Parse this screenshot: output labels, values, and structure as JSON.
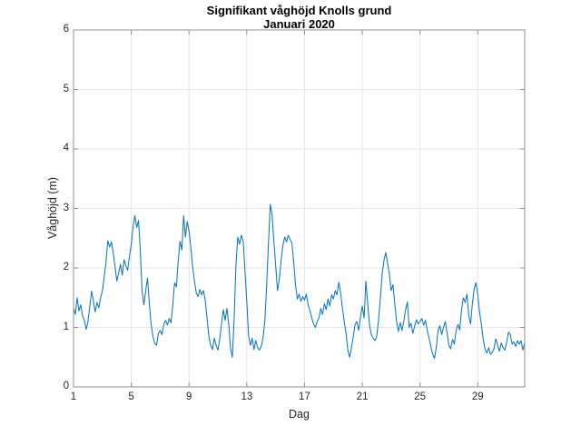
{
  "figure": {
    "background": "#ffffff"
  },
  "chart_data": {
    "type": "line",
    "title": "Signifikant våghöjd Knolls grund",
    "subtitle": "Januari 2020",
    "xlabel": "Dag",
    "ylabel": "Våghöjd (m)",
    "xlim": [
      1,
      32.25
    ],
    "ylim": [
      0,
      6
    ],
    "xticks": [
      1,
      5,
      9,
      13,
      17,
      21,
      25,
      29
    ],
    "yticks": [
      0,
      1,
      2,
      3,
      4,
      5,
      6
    ],
    "grid": true,
    "legend": "none",
    "line_color": "#0072BD",
    "axis_color": "#909090",
    "grid_color": "#e6e6e6",
    "text_color": "#262626",
    "series": [
      {
        "name": "Signifikant våghöjd (m)",
        "x_start": 1,
        "x_step": 0.125,
        "values": [
          1.32,
          1.22,
          1.5,
          1.28,
          1.38,
          1.2,
          1.12,
          0.97,
          1.1,
          1.35,
          1.61,
          1.45,
          1.26,
          1.42,
          1.33,
          1.5,
          1.62,
          1.85,
          2.1,
          2.46,
          2.35,
          2.44,
          2.25,
          2.02,
          1.78,
          1.92,
          2.06,
          1.88,
          2.14,
          2.04,
          1.96,
          2.2,
          2.4,
          2.7,
          2.88,
          2.68,
          2.8,
          2.3,
          1.6,
          1.38,
          1.62,
          1.83,
          1.4,
          1.05,
          0.85,
          0.73,
          0.7,
          0.9,
          0.95,
          0.88,
          1.05,
          1.12,
          1.04,
          1.15,
          1.08,
          1.38,
          1.75,
          1.68,
          2.12,
          2.45,
          2.3,
          2.88,
          2.52,
          2.78,
          2.62,
          2.35,
          2.02,
          1.78,
          1.58,
          1.52,
          1.64,
          1.55,
          1.62,
          1.45,
          1.15,
          0.85,
          0.7,
          0.63,
          0.82,
          0.7,
          0.62,
          0.8,
          1.06,
          1.3,
          1.12,
          1.32,
          1.05,
          0.65,
          0.5,
          1.15,
          2.05,
          2.52,
          2.4,
          2.55,
          2.45,
          1.95,
          1.44,
          0.86,
          0.7,
          0.82,
          0.63,
          0.78,
          0.66,
          0.62,
          0.68,
          0.82,
          1.1,
          1.7,
          2.4,
          3.07,
          2.9,
          2.45,
          2.05,
          1.62,
          1.8,
          2.12,
          2.38,
          2.52,
          2.44,
          2.55,
          2.48,
          2.42,
          2.1,
          1.72,
          1.48,
          1.56,
          1.44,
          1.52,
          1.46,
          1.56,
          1.38,
          1.28,
          1.16,
          1.06,
          1.0,
          1.1,
          1.16,
          1.32,
          1.22,
          1.4,
          1.3,
          1.48,
          1.36,
          1.55,
          1.48,
          1.62,
          1.55,
          1.76,
          1.58,
          1.32,
          1.1,
          0.9,
          0.62,
          0.5,
          0.66,
          0.85,
          1.05,
          1.1,
          0.95,
          1.18,
          1.36,
          1.16,
          1.78,
          1.4,
          1.05,
          0.88,
          0.82,
          0.78,
          0.85,
          1.12,
          1.48,
          1.9,
          2.12,
          2.26,
          2.08,
          1.9,
          1.62,
          1.72,
          1.4,
          1.1,
          0.93,
          1.08,
          0.95,
          1.1,
          1.3,
          1.43,
          1.0,
          1.07,
          0.9,
          1.02,
          1.13,
          1.06,
          1.1,
          1.15,
          1.04,
          1.12,
          0.95,
          0.82,
          0.68,
          0.55,
          0.48,
          0.66,
          0.95,
          1.03,
          0.88,
          1.0,
          1.1,
          0.9,
          0.7,
          0.64,
          0.8,
          0.72,
          0.95,
          1.05,
          0.96,
          1.3,
          1.5,
          1.42,
          1.56,
          1.2,
          1.06,
          1.4,
          1.65,
          1.75,
          1.55,
          1.25,
          1.05,
          0.8,
          0.64,
          0.57,
          0.66,
          0.55,
          0.58,
          0.65,
          0.81,
          0.7,
          0.6,
          0.74,
          0.66,
          0.62,
          0.75,
          0.92,
          0.88,
          0.72,
          0.76,
          0.68,
          0.78,
          0.72,
          0.78,
          0.62,
          0.74
        ]
      }
    ]
  }
}
